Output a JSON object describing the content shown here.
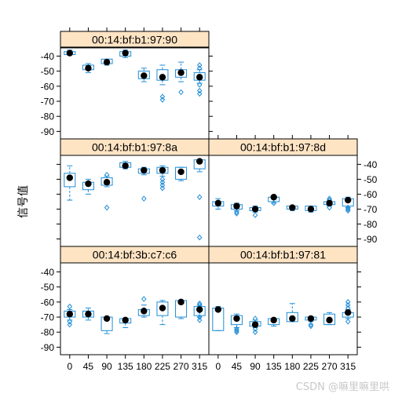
{
  "chart_data": {
    "type": "box",
    "ylabel": "信号值",
    "xlabel": "",
    "categories": [
      "0",
      "45",
      "90",
      "135",
      "180",
      "225",
      "270",
      "315"
    ],
    "ylim": [
      -95,
      -34
    ],
    "yticks": [
      -40,
      -50,
      -60,
      -70,
      -80,
      -90
    ],
    "colors": {
      "box": "#1f8dd6",
      "median_dot": "#000000",
      "strip": "#ffe4c4",
      "frame": "#000000"
    },
    "panels": [
      {
        "name": "00:14:bf:b1:97:90",
        "groups": [
          {
            "cat": "0",
            "lw": -39,
            "q1": -39,
            "med": -38,
            "q3": -37,
            "uw": -36,
            "mean": -38,
            "out": []
          },
          {
            "cat": "45",
            "lw": -51,
            "q1": -49,
            "med": -48,
            "q3": -46,
            "uw": -45,
            "mean": -48,
            "out": []
          },
          {
            "cat": "90",
            "lw": -46,
            "q1": -45,
            "med": -44,
            "q3": -42,
            "uw": -42,
            "mean": -44,
            "out": []
          },
          {
            "cat": "135",
            "lw": -41,
            "q1": -40,
            "med": -38,
            "q3": -37,
            "uw": -36,
            "mean": -38,
            "out": []
          },
          {
            "cat": "180",
            "lw": -57,
            "q1": -55,
            "med": -53,
            "q3": -50,
            "uw": -48,
            "mean": -53,
            "out": []
          },
          {
            "cat": "225",
            "lw": -59,
            "q1": -56,
            "med": -54,
            "q3": -49,
            "uw": -46,
            "mean": -54,
            "out": [
              -67,
              -69
            ]
          },
          {
            "cat": "270",
            "lw": -57,
            "q1": -54,
            "med": -51,
            "q3": -49,
            "uw": -44,
            "mean": -51,
            "out": [
              -64
            ]
          },
          {
            "cat": "315",
            "lw": -58,
            "q1": -56,
            "med": -54,
            "q3": -51,
            "uw": -49,
            "mean": -54,
            "out": [
              -46,
              -48,
              -59,
              -63,
              -65
            ]
          }
        ]
      },
      {
        "name": "00:14:bf:b1:97:8a",
        "groups": [
          {
            "cat": "0",
            "lw": -64,
            "q1": -55,
            "med": -48,
            "q3": -46,
            "uw": -41,
            "mean": -49,
            "out": []
          },
          {
            "cat": "45",
            "lw": -60,
            "q1": -57,
            "med": -53,
            "q3": -52,
            "uw": -50,
            "mean": -53,
            "out": []
          },
          {
            "cat": "90",
            "lw": -55,
            "q1": -54,
            "med": -52,
            "q3": -49,
            "uw": -48,
            "mean": -52,
            "out": [
              -47,
              -69
            ]
          },
          {
            "cat": "135",
            "lw": -43,
            "q1": -42,
            "med": -41,
            "q3": -39,
            "uw": -38,
            "mean": -41,
            "out": []
          },
          {
            "cat": "180",
            "lw": -47,
            "q1": -46,
            "med": -44,
            "q3": -43,
            "uw": -42,
            "mean": -44,
            "out": [
              -63
            ]
          },
          {
            "cat": "225",
            "lw": -48,
            "q1": -46,
            "med": -44,
            "q3": -42,
            "uw": -41,
            "mean": -44,
            "out": [
              -50,
              -52,
              -54,
              -56
            ]
          },
          {
            "cat": "270",
            "lw": -51,
            "q1": -50,
            "med": -45,
            "q3": -42,
            "uw": -42,
            "mean": -45,
            "out": []
          },
          {
            "cat": "315",
            "lw": -45,
            "q1": -43,
            "med": -38,
            "q3": -37,
            "uw": -37,
            "mean": -38,
            "out": [
              -62,
              -89
            ]
          }
        ]
      },
      {
        "name": "00:14:bf:b1:97:8d",
        "groups": [
          {
            "cat": "0",
            "lw": -70,
            "q1": -68,
            "med": -67,
            "q3": -65,
            "uw": -63,
            "mean": -66,
            "out": []
          },
          {
            "cat": "45",
            "lw": -71,
            "q1": -70,
            "med": -68,
            "q3": -67,
            "uw": -66,
            "mean": -68,
            "out": [
              -72,
              -73
            ]
          },
          {
            "cat": "90",
            "lw": -72,
            "q1": -71,
            "med": -70,
            "q3": -69,
            "uw": -68,
            "mean": -70,
            "out": [
              -74
            ]
          },
          {
            "cat": "135",
            "lw": -66,
            "q1": -65,
            "med": -64,
            "q3": -62,
            "uw": -61,
            "mean": -62,
            "out": [
              -66
            ]
          },
          {
            "cat": "180",
            "lw": -71,
            "q1": -70,
            "med": -69,
            "q3": -68,
            "uw": -68,
            "mean": -69,
            "out": []
          },
          {
            "cat": "225",
            "lw": -72,
            "q1": -71,
            "med": -70,
            "q3": -68,
            "uw": -68,
            "mean": -70,
            "out": []
          },
          {
            "cat": "270",
            "lw": -68,
            "q1": -67,
            "med": -66,
            "q3": -65,
            "uw": -64,
            "mean": -66,
            "out": [
              -63,
              -64,
              -69
            ]
          },
          {
            "cat": "315",
            "lw": -69,
            "q1": -68,
            "med": -66,
            "q3": -63,
            "uw": -62,
            "mean": -64,
            "out": [
              -69,
              -70,
              -71
            ]
          }
        ]
      },
      {
        "name": "00:14:bf:3b:c7:c6",
        "groups": [
          {
            "cat": "0",
            "lw": -72,
            "q1": -70,
            "med": -67,
            "q3": -66,
            "uw": -65,
            "mean": -68,
            "out": [
              -63,
              -73,
              -75
            ]
          },
          {
            "cat": "45",
            "lw": -72,
            "q1": -70,
            "med": -68,
            "q3": -66,
            "uw": -64,
            "mean": -68,
            "out": []
          },
          {
            "cat": "90",
            "lw": -81,
            "q1": -79,
            "med": -71,
            "q3": -70,
            "uw": -70,
            "mean": -71,
            "out": []
          },
          {
            "cat": "135",
            "lw": -77,
            "q1": -74,
            "med": -72,
            "q3": -71,
            "uw": -71,
            "mean": -72,
            "out": []
          },
          {
            "cat": "180",
            "lw": -70,
            "q1": -69,
            "med": -66,
            "q3": -65,
            "uw": -62,
            "mean": -66,
            "out": [
              -58
            ]
          },
          {
            "cat": "225",
            "lw": -75,
            "q1": -69,
            "med": -64,
            "q3": -60,
            "uw": -59,
            "mean": -64,
            "out": []
          },
          {
            "cat": "270",
            "lw": -71,
            "q1": -70,
            "med": -60,
            "q3": -59,
            "uw": -59,
            "mean": -60,
            "out": []
          },
          {
            "cat": "315",
            "lw": -70,
            "q1": -69,
            "med": -65,
            "q3": -63,
            "uw": -62,
            "mean": -65,
            "out": [
              -61,
              -62,
              -64,
              -66,
              -70,
              -72
            ]
          }
        ]
      },
      {
        "name": "00:14:bf:b1:97:81",
        "groups": [
          {
            "cat": "0",
            "lw": -79,
            "q1": -79,
            "med": -65,
            "q3": -64,
            "uw": -63,
            "mean": -65,
            "out": []
          },
          {
            "cat": "45",
            "lw": -77,
            "q1": -75,
            "med": -71,
            "q3": -69,
            "uw": -68,
            "mean": -71,
            "out": [
              -78,
              -79,
              -80
            ]
          },
          {
            "cat": "90",
            "lw": -77,
            "q1": -76,
            "med": -75,
            "q3": -73,
            "uw": -72,
            "mean": -75,
            "out": [
              -71,
              -78,
              -80
            ]
          },
          {
            "cat": "135",
            "lw": -76,
            "q1": -75,
            "med": -72,
            "q3": -71,
            "uw": -71,
            "mean": -72,
            "out": []
          },
          {
            "cat": "180",
            "lw": -73,
            "q1": -73,
            "med": -70,
            "q3": -67,
            "uw": -61,
            "mean": -71,
            "out": []
          },
          {
            "cat": "225",
            "lw": -73,
            "q1": -72,
            "med": -71,
            "q3": -70,
            "uw": -70,
            "mean": -71,
            "out": [
              -75,
              -76
            ]
          },
          {
            "cat": "270",
            "lw": -75,
            "q1": -75,
            "med": -72,
            "q3": -68,
            "uw": -67,
            "mean": -72,
            "out": []
          },
          {
            "cat": "315",
            "lw": -71,
            "q1": -70,
            "med": -68,
            "q3": -67,
            "uw": -65,
            "mean": -67,
            "out": [
              -60,
              -62,
              -64,
              -73
            ]
          }
        ]
      }
    ]
  },
  "watermark": "CSDN @嘛里嘛里哄"
}
